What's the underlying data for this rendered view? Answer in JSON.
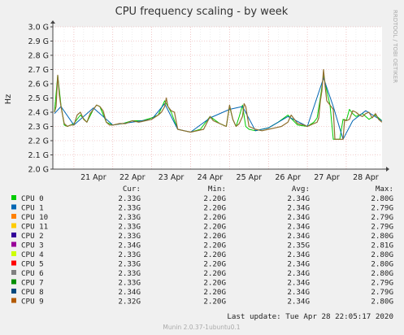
{
  "chart_data": {
    "type": "line",
    "title": "CPU frequency scaling - by week",
    "ylabel": "Hz",
    "side_label": "RRDTOOL / TOBI OETIKER",
    "ylim": [
      2.0,
      3.0
    ],
    "y_ticks": [
      "2.0 G",
      "2.1 G",
      "2.2 G",
      "2.3 G",
      "2.4 G",
      "2.5 G",
      "2.6 G",
      "2.7 G",
      "2.8 G",
      "2.9 G",
      "3.0 G"
    ],
    "x_ticks": [
      "21 Apr",
      "22 Apr",
      "23 Apr",
      "24 Apr",
      "25 Apr",
      "26 Apr",
      "27 Apr",
      "28 Apr"
    ],
    "grid": true,
    "series": [
      {
        "name": "CPU 0",
        "color": "#00cc00",
        "x": [
          "20 Apr 12:00",
          "20 Apr 14:00",
          "20 Apr 16:00",
          "20 Apr 18:00",
          "20 Apr 20:00",
          "21 Apr 00:00",
          "21 Apr 04:00",
          "21 Apr 08:00",
          "21 Apr 12:00",
          "21 Apr 14:00",
          "21 Apr 16:00",
          "21 Apr 20:00",
          "22 Apr 00:00",
          "22 Apr 06:00",
          "22 Apr 12:00",
          "22 Apr 18:00",
          "23 Apr 00:00",
          "23 Apr 04:00",
          "23 Apr 08:00",
          "23 Apr 10:00",
          "23 Apr 12:00",
          "23 Apr 16:00",
          "23 Apr 20:00",
          "24 Apr 00:00",
          "24 Apr 06:00",
          "24 Apr 12:00",
          "24 Apr 18:00",
          "24 Apr 22:00",
          "25 Apr 00:00",
          "25 Apr 02:00",
          "25 Apr 04:00",
          "25 Apr 06:00",
          "25 Apr 08:00",
          "25 Apr 10:00",
          "25 Apr 12:00",
          "25 Apr 16:00",
          "25 Apr 20:00",
          "26 Apr 00:00",
          "26 Apr 06:00",
          "26 Apr 12:00",
          "26 Apr 18:00",
          "27 Apr 00:00",
          "27 Apr 04:00",
          "27 Apr 06:00",
          "27 Apr 08:00",
          "27 Apr 10:00",
          "27 Apr 12:00",
          "27 Apr 14:00",
          "27 Apr 16:00",
          "27 Apr 18:00",
          "27 Apr 20:00",
          "27 Apr 22:00",
          "28 Apr 00:00",
          "28 Apr 02:00",
          "28 Apr 04:00",
          "28 Apr 06:00",
          "28 Apr 10:00",
          "28 Apr 14:00",
          "28 Apr 18:00",
          "28 Apr 22:00"
        ],
        "values": [
          2.4,
          2.66,
          2.45,
          2.31,
          2.3,
          2.32,
          2.38,
          2.33,
          2.42,
          2.45,
          2.44,
          2.33,
          2.31,
          2.32,
          2.34,
          2.34,
          2.36,
          2.38,
          2.48,
          2.44,
          2.4,
          2.28,
          2.27,
          2.26,
          2.28,
          2.37,
          2.32,
          2.3,
          2.44,
          2.35,
          2.3,
          2.37,
          2.45,
          2.3,
          2.28,
          2.27,
          2.28,
          2.29,
          2.33,
          2.38,
          2.31,
          2.3,
          2.33,
          2.36,
          2.5,
          2.66,
          2.55,
          2.45,
          2.21,
          2.21,
          2.21,
          2.35,
          2.34,
          2.42,
          2.39,
          2.37,
          2.39,
          2.35,
          2.38,
          2.34
        ]
      },
      {
        "name": "CPU 1",
        "color": "#0066b3",
        "x": [
          "20 Apr 12:00",
          "20 Apr 16:00",
          "21 Apr 00:00",
          "21 Apr 12:00",
          "22 Apr 00:00",
          "22 Apr 12:00",
          "23 Apr 00:00",
          "23 Apr 08:00",
          "23 Apr 16:00",
          "24 Apr 00:00",
          "24 Apr 12:00",
          "25 Apr 00:00",
          "25 Apr 08:00",
          "25 Apr 16:00",
          "26 Apr 00:00",
          "26 Apr 12:00",
          "27 Apr 00:00",
          "27 Apr 10:00",
          "27 Apr 16:00",
          "27 Apr 22:00",
          "28 Apr 04:00",
          "28 Apr 12:00",
          "28 Apr 22:00"
        ],
        "values": [
          2.39,
          2.44,
          2.31,
          2.43,
          2.31,
          2.33,
          2.35,
          2.46,
          2.28,
          2.26,
          2.36,
          2.42,
          2.44,
          2.27,
          2.29,
          2.37,
          2.3,
          2.64,
          2.44,
          2.21,
          2.34,
          2.41,
          2.34
        ]
      },
      {
        "name": "CPU 9",
        "color": "#8f6f2e",
        "x": [
          "20 Apr 12:00",
          "20 Apr 13:00",
          "20 Apr 14:00",
          "20 Apr 15:00",
          "20 Apr 16:00",
          "20 Apr 18:00",
          "20 Apr 20:00",
          "20 Apr 22:00",
          "21 Apr 00:00",
          "21 Apr 02:00",
          "21 Apr 04:00",
          "21 Apr 06:00",
          "21 Apr 08:00",
          "21 Apr 10:00",
          "21 Apr 12:00",
          "21 Apr 14:00",
          "21 Apr 16:00",
          "21 Apr 18:00",
          "21 Apr 20:00",
          "21 Apr 22:00",
          "22 Apr 00:00",
          "22 Apr 04:00",
          "22 Apr 08:00",
          "22 Apr 12:00",
          "22 Apr 16:00",
          "22 Apr 20:00",
          "23 Apr 00:00",
          "23 Apr 04:00",
          "23 Apr 06:00",
          "23 Apr 08:00",
          "23 Apr 09:00",
          "23 Apr 10:00",
          "23 Apr 12:00",
          "23 Apr 14:00",
          "23 Apr 16:00",
          "23 Apr 20:00",
          "24 Apr 00:00",
          "24 Apr 04:00",
          "24 Apr 08:00",
          "24 Apr 12:00",
          "24 Apr 14:00",
          "24 Apr 18:00",
          "24 Apr 22:00",
          "25 Apr 00:00",
          "25 Apr 01:00",
          "25 Apr 02:00",
          "25 Apr 04:00",
          "25 Apr 06:00",
          "25 Apr 08:00",
          "25 Apr 09:00",
          "25 Apr 10:00",
          "25 Apr 12:00",
          "25 Apr 16:00",
          "25 Apr 20:00",
          "26 Apr 00:00",
          "26 Apr 04:00",
          "26 Apr 08:00",
          "26 Apr 12:00",
          "26 Apr 14:00",
          "26 Apr 18:00",
          "26 Apr 22:00",
          "27 Apr 00:00",
          "27 Apr 04:00",
          "27 Apr 06:00",
          "27 Apr 07:00",
          "27 Apr 08:00",
          "27 Apr 09:00",
          "27 Apr 10:00",
          "27 Apr 11:00",
          "27 Apr 12:00",
          "27 Apr 14:00",
          "27 Apr 16:00",
          "27 Apr 17:00",
          "27 Apr 18:00",
          "27 Apr 20:00",
          "27 Apr 22:00",
          "27 Apr 23:00",
          "28 Apr 00:00",
          "28 Apr 02:00",
          "28 Apr 04:00",
          "28 Apr 06:00",
          "28 Apr 08:00",
          "28 Apr 10:00",
          "28 Apr 12:00",
          "28 Apr 14:00",
          "28 Apr 16:00",
          "28 Apr 18:00",
          "28 Apr 20:00",
          "28 Apr 22:00"
        ],
        "values": [
          2.4,
          2.44,
          2.66,
          2.52,
          2.44,
          2.32,
          2.3,
          2.31,
          2.31,
          2.38,
          2.4,
          2.35,
          2.33,
          2.39,
          2.42,
          2.45,
          2.44,
          2.41,
          2.33,
          2.31,
          2.31,
          2.32,
          2.32,
          2.34,
          2.33,
          2.34,
          2.35,
          2.38,
          2.4,
          2.44,
          2.5,
          2.44,
          2.41,
          2.4,
          2.28,
          2.27,
          2.26,
          2.27,
          2.28,
          2.37,
          2.34,
          2.32,
          2.3,
          2.45,
          2.4,
          2.35,
          2.3,
          2.32,
          2.37,
          2.46,
          2.44,
          2.3,
          2.28,
          2.27,
          2.28,
          2.29,
          2.3,
          2.33,
          2.38,
          2.32,
          2.31,
          2.3,
          2.32,
          2.33,
          2.36,
          2.48,
          2.55,
          2.7,
          2.58,
          2.48,
          2.45,
          2.42,
          2.21,
          2.21,
          2.21,
          2.21,
          2.35,
          2.34,
          2.35,
          2.41,
          2.4,
          2.38,
          2.37,
          2.39,
          2.4,
          2.36,
          2.39,
          2.35,
          2.33
        ]
      }
    ]
  },
  "legend": {
    "headers": [
      "Cur:",
      "Min:",
      "Avg:",
      "Max:"
    ],
    "rows": [
      {
        "name": "CPU 0",
        "color": "#00cc00",
        "cur": "2.33G",
        "min": "2.20G",
        "avg": "2.34G",
        "max": "2.80G"
      },
      {
        "name": "CPU 1",
        "color": "#0066b3",
        "cur": "2.33G",
        "min": "2.20G",
        "avg": "2.34G",
        "max": "2.79G"
      },
      {
        "name": "CPU 10",
        "color": "#ff8000",
        "cur": "2.33G",
        "min": "2.20G",
        "avg": "2.34G",
        "max": "2.79G"
      },
      {
        "name": "CPU 11",
        "color": "#ffcc00",
        "cur": "2.33G",
        "min": "2.20G",
        "avg": "2.34G",
        "max": "2.79G"
      },
      {
        "name": "CPU 2",
        "color": "#330099",
        "cur": "2.33G",
        "min": "2.20G",
        "avg": "2.34G",
        "max": "2.80G"
      },
      {
        "name": "CPU 3",
        "color": "#990099",
        "cur": "2.34G",
        "min": "2.20G",
        "avg": "2.35G",
        "max": "2.81G"
      },
      {
        "name": "CPU 4",
        "color": "#ccff00",
        "cur": "2.33G",
        "min": "2.20G",
        "avg": "2.34G",
        "max": "2.80G"
      },
      {
        "name": "CPU 5",
        "color": "#ff0000",
        "cur": "2.33G",
        "min": "2.20G",
        "avg": "2.34G",
        "max": "2.80G"
      },
      {
        "name": "CPU 6",
        "color": "#808080",
        "cur": "2.33G",
        "min": "2.20G",
        "avg": "2.34G",
        "max": "2.80G"
      },
      {
        "name": "CPU 7",
        "color": "#008f00",
        "cur": "2.33G",
        "min": "2.20G",
        "avg": "2.34G",
        "max": "2.79G"
      },
      {
        "name": "CPU 8",
        "color": "#00487d",
        "cur": "2.34G",
        "min": "2.20G",
        "avg": "2.34G",
        "max": "2.79G"
      },
      {
        "name": "CPU 9",
        "color": "#b35a00",
        "cur": "2.32G",
        "min": "2.20G",
        "avg": "2.34G",
        "max": "2.80G"
      }
    ],
    "last_update": "Last update: Tue Apr 28 22:05:17 2020"
  },
  "footer": "Munin 2.0.37-1ubuntu0.1"
}
